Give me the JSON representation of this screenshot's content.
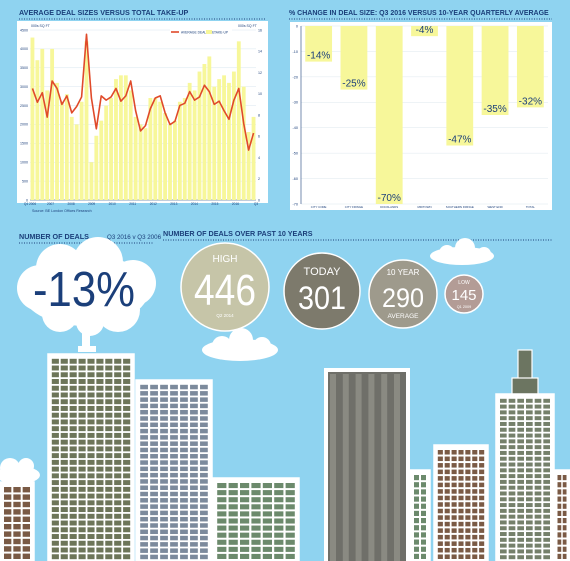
{
  "chart_data": [
    {
      "type": "bar",
      "title": "AVERAGE DEAL SIZES VERSUS TOTAL TAKE-UP",
      "left_unit": "000s SQ FT",
      "right_unit": "000s SQ FT",
      "ylim_left": [
        0,
        4500
      ],
      "yticks_left": [
        0,
        500,
        1000,
        1500,
        2000,
        2500,
        3000,
        3500,
        4000,
        4500
      ],
      "ylim_right": [
        0,
        16
      ],
      "yticks_right": [
        0,
        2,
        4,
        6,
        8,
        10,
        12,
        14,
        16
      ],
      "legend": [
        "AVERAGE DEAL SIZE",
        "TAKE-UP"
      ],
      "x_labels": [
        "Q4 2006",
        "2007",
        "2008",
        "2009",
        "2010",
        "2011",
        "2012",
        "2013",
        "2014",
        "2015",
        "2016",
        "Q3"
      ],
      "source": "Source: BE London Offices Research",
      "series": [
        {
          "name": "TAKE-UP",
          "values": [
            4300,
            3700,
            4000,
            2900,
            4000,
            3100,
            2600,
            2800,
            2200,
            2000,
            2600,
            4200,
            1000,
            1700,
            2100,
            2500,
            2700,
            3200,
            3300,
            3300,
            2900,
            2200,
            2000,
            1900,
            2700,
            2700,
            2600,
            2300,
            2000,
            2100,
            2600,
            2700,
            3100,
            2900,
            3400,
            3600,
            3800,
            3000,
            3200,
            3300,
            3100,
            3400,
            4200,
            3000,
            1800,
            2200
          ]
        },
        {
          "name": "AVERAGE DEAL SIZE",
          "values": [
            10.5,
            9.2,
            10.1,
            7.8,
            11.2,
            10.5,
            9.0,
            9.8,
            8.2,
            8.8,
            9.7,
            15.6,
            9.6,
            6.7,
            9.8,
            9.4,
            9.7,
            10.5,
            9.3,
            9.8,
            11.2,
            8.4,
            6.5,
            7.0,
            8.6,
            9.6,
            9.8,
            8.2,
            7.1,
            7.4,
            8.9,
            9.1,
            10.2,
            9.4,
            9.7,
            10.8,
            10.2,
            9.0,
            9.3,
            8.4,
            7.6,
            9.4,
            10.5,
            7.2,
            4.7,
            6.3
          ]
        }
      ]
    },
    {
      "type": "bar",
      "title": "% CHANGE IN DEAL SIZE: Q3 2016 VERSUS 10-YEAR QUARTERLY AVERAGE",
      "categories": [
        "CITY CORE",
        "CITY FRINGE",
        "DOCKLANDS",
        "MIDTOWN",
        "SOUTHERN FRINGE",
        "WEST END",
        "TOTAL"
      ],
      "values": [
        -14,
        -25,
        -70,
        -4,
        -47,
        -35,
        -32
      ],
      "value_labels": [
        "-14%",
        "-25%",
        "-70%",
        "-4%",
        "-47%",
        "-35%",
        "-32%"
      ],
      "ylim": [
        -70,
        0
      ],
      "yticks": [
        0,
        -10,
        -20,
        -30,
        -40,
        -50,
        -60,
        -70
      ]
    }
  ],
  "deals": {
    "title": "NUMBER OF DEALS",
    "subtitle": "Q3 2016 v Q3 2006",
    "change": "-13%"
  },
  "deals10": {
    "title": "NUMBER OF DEALS OVER PAST 10 YEARS",
    "high": {
      "label": "HIGH",
      "value": "446",
      "sub": "Q2 2014",
      "number": 446
    },
    "today": {
      "label": "TODAY",
      "value": "301",
      "number": 301
    },
    "avg": {
      "label": "10 YEAR",
      "value": "290",
      "sub": "AVERAGE",
      "number": 290
    },
    "low": {
      "label": "LOW",
      "value": "145",
      "sub": "Q1 2009",
      "number": 145
    }
  },
  "colors": {
    "sky": "#8fd3f0",
    "bar": "#f7f79a",
    "line": "#e04a2a",
    "navy": "#1b3f7a",
    "high": "#c6c5a8",
    "today": "#7d7a6c",
    "avg": "#9e9a8c",
    "low": "#b39c96"
  }
}
